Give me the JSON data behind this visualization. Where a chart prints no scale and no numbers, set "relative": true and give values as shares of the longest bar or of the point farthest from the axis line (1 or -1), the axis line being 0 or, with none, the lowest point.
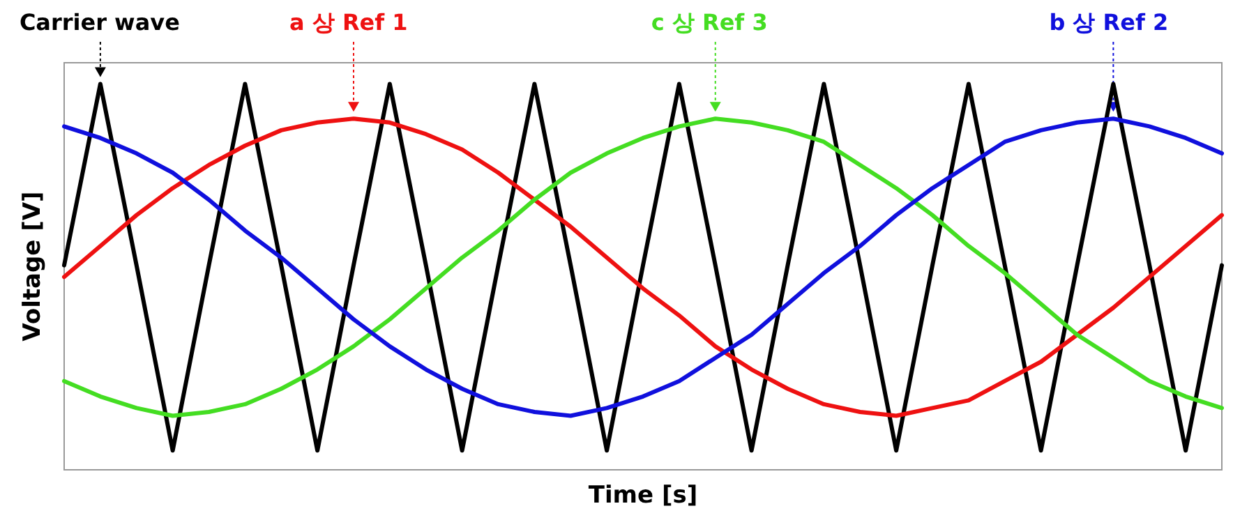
{
  "chart_data": {
    "type": "line",
    "xlabel": "Time [s]",
    "ylabel": "Voltage [V]",
    "relative": true,
    "marker": "none",
    "line_style": "solid",
    "categories": [
      null,
      null,
      null,
      null,
      null,
      null,
      null,
      null,
      null,
      null,
      null,
      null,
      null,
      null,
      null,
      null,
      null,
      null,
      null,
      null,
      null,
      null,
      null,
      null,
      null,
      null,
      null,
      null,
      null,
      null,
      null,
      null,
      null
    ],
    "series": [
      {
        "name": "Carrier wave",
        "color": "#000000",
        "values": [
          0.53,
          1,
          0.53,
          0.05,
          0.53,
          1,
          0.53,
          0.05,
          0.53,
          1,
          0.53,
          0.05,
          0.53,
          1,
          0.53,
          0.05,
          0.53,
          1,
          0.53,
          0.05,
          0.53,
          1,
          0.53,
          0.05,
          0.53,
          1,
          0.53,
          0.05,
          0.53,
          1,
          0.53,
          0.05,
          0.53
        ]
      },
      {
        "name": "a 상 Ref 1",
        "color": "#ee1111",
        "values": [
          0.5,
          0.58,
          0.66,
          0.73,
          0.79,
          0.84,
          0.88,
          0.9,
          0.91,
          0.9,
          0.87,
          0.83,
          0.77,
          0.7,
          0.63,
          0.55,
          0.47,
          0.4,
          0.32,
          0.26,
          0.21,
          0.17,
          0.15,
          0.14,
          0.16,
          0.18,
          0.23,
          0.28,
          0.35,
          0.42,
          0.5,
          0.58,
          0.66
        ]
      },
      {
        "name": "c 상 Ref 3",
        "color": "#44dd22",
        "values": [
          0.23,
          0.19,
          0.16,
          0.14,
          0.15,
          0.17,
          0.21,
          0.26,
          0.32,
          0.39,
          0.47,
          0.55,
          0.62,
          0.7,
          0.77,
          0.82,
          0.86,
          0.89,
          0.91,
          0.9,
          0.88,
          0.85,
          0.79,
          0.73,
          0.66,
          0.58,
          0.51,
          0.43,
          0.35,
          0.29,
          0.23,
          0.19,
          0.16
        ]
      },
      {
        "name": "b 상 Ref 2",
        "color": "#1010dd",
        "values": [
          0.89,
          0.86,
          0.82,
          0.77,
          0.7,
          0.62,
          0.55,
          0.47,
          0.39,
          0.32,
          0.26,
          0.21,
          0.17,
          0.15,
          0.14,
          0.16,
          0.19,
          0.23,
          0.29,
          0.35,
          0.43,
          0.51,
          0.58,
          0.66,
          0.73,
          0.79,
          0.85,
          0.88,
          0.9,
          0.91,
          0.89,
          0.86,
          0.82
        ]
      }
    ]
  }
}
